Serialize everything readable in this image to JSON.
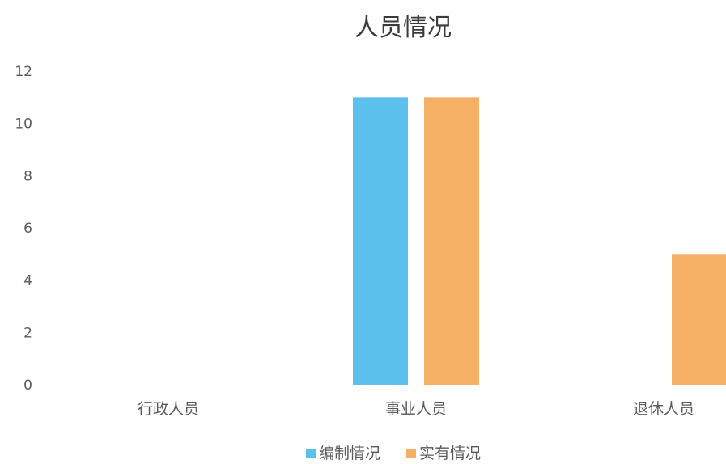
{
  "chart_data": {
    "type": "bar",
    "title": "人员情况",
    "categories": [
      "行政人员",
      "事业人员",
      "退休人员"
    ],
    "series": [
      {
        "name": "编制情况",
        "color": "#5bc0eb",
        "values": [
          0,
          11,
          0
        ]
      },
      {
        "name": "实有情况",
        "color": "#f5b066",
        "values": [
          0,
          11,
          5
        ]
      }
    ],
    "ylim": [
      0,
      12
    ],
    "yticks": [
      "0",
      "2",
      "4",
      "6",
      "8",
      "10",
      "12"
    ],
    "grid": false,
    "legend": "bottom",
    "xlabel": "",
    "ylabel": ""
  }
}
